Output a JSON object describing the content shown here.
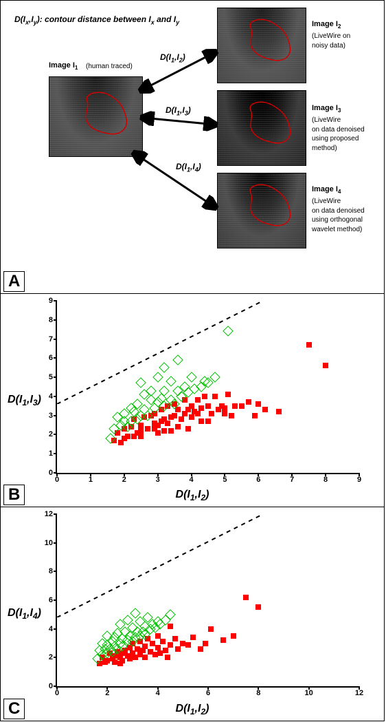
{
  "panelA": {
    "letter": "A",
    "definition_html": "D(I<sub>x</sub>,I<sub>y</sub>): contour distance between I<sub>x</sub> and I<sub>y</sub>",
    "left_image": {
      "label_html": "Image I<sub>1</sub>",
      "caption": "(human traced)",
      "contour_color": "#d00000"
    },
    "right_images": [
      {
        "label_html": "Image I<sub>2</sub>",
        "caption": "(LiveWire on\nnoisy data)"
      },
      {
        "label_html": "Image I<sub>3</sub>",
        "caption": "(LiveWire\non data denoised\nusing proposed\nmethod)"
      },
      {
        "label_html": "Image I<sub>4</sub>",
        "caption": "(LiveWire\non data denoised\nusing orthogonal\nwavelet method)"
      }
    ],
    "edges": [
      {
        "label_html": "D(I<sub>1</sub>,I<sub>2</sub>)"
      },
      {
        "label_html": "D(I<sub>1</sub>,I<sub>3</sub>)"
      },
      {
        "label_html": "D(I<sub>1</sub>,I<sub>4</sub>)"
      }
    ]
  },
  "chartB": {
    "letter": "B",
    "type": "scatter",
    "x_label_html": "D(I<sub>1</sub>,I<sub>2</sub>)",
    "y_label_html": "D(I<sub>1</sub>,I<sub>3</sub>)",
    "xlim": [
      0,
      9
    ],
    "ylim": [
      0,
      9
    ],
    "xtick_step": 1,
    "ytick_step": 1,
    "axis_color": "#000000",
    "diag_dash": "6 6",
    "background_color": "#ffffff",
    "label_fontsize": 16,
    "tick_fontsize": 11,
    "series": [
      {
        "name": "red_squares",
        "marker": "square",
        "fill_color": "#ff0000",
        "stroke_color": "#ff0000",
        "size": 8,
        "points": [
          [
            1.7,
            1.7
          ],
          [
            1.8,
            2.1
          ],
          [
            1.9,
            1.6
          ],
          [
            2.0,
            2.3
          ],
          [
            2.0,
            1.8
          ],
          [
            2.1,
            1.9
          ],
          [
            2.2,
            2.4
          ],
          [
            2.3,
            1.9
          ],
          [
            2.3,
            2.8
          ],
          [
            2.4,
            2.1
          ],
          [
            2.5,
            2.2
          ],
          [
            2.5,
            1.9
          ],
          [
            2.5,
            2.5
          ],
          [
            2.6,
            2.9
          ],
          [
            2.7,
            2.3
          ],
          [
            2.8,
            3.0
          ],
          [
            2.9,
            2.3
          ],
          [
            2.9,
            2.6
          ],
          [
            2.9,
            3.1
          ],
          [
            3.0,
            2.1
          ],
          [
            3.0,
            2.5
          ],
          [
            3.1,
            3.3
          ],
          [
            3.1,
            2.7
          ],
          [
            3.2,
            2.2
          ],
          [
            3.2,
            2.8
          ],
          [
            3.3,
            3.5
          ],
          [
            3.3,
            2.6
          ],
          [
            3.4,
            2.9
          ],
          [
            3.4,
            2.2
          ],
          [
            3.5,
            3.0
          ],
          [
            3.5,
            3.6
          ],
          [
            3.6,
            2.4
          ],
          [
            3.6,
            3.3
          ],
          [
            3.7,
            2.8
          ],
          [
            3.8,
            3.1
          ],
          [
            3.8,
            3.8
          ],
          [
            3.9,
            2.3
          ],
          [
            3.9,
            3.3
          ],
          [
            4.0,
            3.5
          ],
          [
            4.0,
            2.9
          ],
          [
            4.1,
            3.2
          ],
          [
            4.2,
            3.8
          ],
          [
            4.2,
            3.1
          ],
          [
            4.3,
            2.7
          ],
          [
            4.3,
            3.4
          ],
          [
            4.4,
            4.0
          ],
          [
            4.5,
            3.5
          ],
          [
            4.5,
            2.7
          ],
          [
            4.6,
            3.1
          ],
          [
            4.7,
            4.0
          ],
          [
            4.8,
            3.3
          ],
          [
            4.9,
            3.5
          ],
          [
            5.0,
            3.1
          ],
          [
            5.0,
            3.4
          ],
          [
            5.1,
            4.1
          ],
          [
            5.2,
            3.0
          ],
          [
            5.3,
            3.5
          ],
          [
            5.5,
            3.5
          ],
          [
            5.7,
            3.7
          ],
          [
            5.9,
            3.0
          ],
          [
            6.0,
            3.6
          ],
          [
            6.2,
            3.3
          ],
          [
            6.6,
            3.2
          ],
          [
            7.5,
            6.7
          ],
          [
            8.0,
            5.6
          ]
        ]
      },
      {
        "name": "green_diamonds",
        "marker": "diamond",
        "fill_color": "transparent",
        "stroke_color": "#00c000",
        "size": 9,
        "points": [
          [
            1.6,
            1.8
          ],
          [
            1.7,
            2.3
          ],
          [
            1.8,
            2.9
          ],
          [
            1.9,
            2.5
          ],
          [
            2.0,
            2.7
          ],
          [
            2.0,
            3.1
          ],
          [
            2.1,
            2.4
          ],
          [
            2.2,
            3.4
          ],
          [
            2.2,
            2.7
          ],
          [
            2.3,
            3.2
          ],
          [
            2.4,
            2.8
          ],
          [
            2.4,
            3.6
          ],
          [
            2.5,
            3.0
          ],
          [
            2.5,
            4.7
          ],
          [
            2.6,
            3.3
          ],
          [
            2.6,
            4.1
          ],
          [
            2.7,
            3.0
          ],
          [
            2.8,
            3.8
          ],
          [
            2.8,
            4.3
          ],
          [
            2.9,
            3.4
          ],
          [
            3.0,
            3.7
          ],
          [
            3.0,
            5.0
          ],
          [
            3.1,
            3.9
          ],
          [
            3.2,
            3.5
          ],
          [
            3.2,
            4.3
          ],
          [
            3.2,
            5.5
          ],
          [
            3.4,
            3.8
          ],
          [
            3.4,
            4.8
          ],
          [
            3.5,
            3.6
          ],
          [
            3.6,
            4.3
          ],
          [
            3.6,
            5.9
          ],
          [
            3.7,
            4.0
          ],
          [
            3.8,
            4.5
          ],
          [
            3.9,
            4.2
          ],
          [
            4.0,
            5.0
          ],
          [
            4.1,
            4.4
          ],
          [
            4.3,
            4.5
          ],
          [
            4.4,
            4.8
          ],
          [
            4.5,
            4.7
          ],
          [
            4.7,
            5.0
          ],
          [
            5.1,
            7.4
          ]
        ]
      }
    ]
  },
  "chartC": {
    "letter": "C",
    "type": "scatter",
    "x_label_html": "D(I<sub>1</sub>,I<sub>2</sub>)",
    "y_label_html": "D(I<sub>1</sub>,I<sub>4</sub>)",
    "xlim": [
      0,
      12
    ],
    "ylim": [
      0,
      12
    ],
    "xtick_step": 2,
    "ytick_step": 2,
    "axis_color": "#000000",
    "diag_dash": "6 6",
    "background_color": "#ffffff",
    "label_fontsize": 16,
    "tick_fontsize": 11,
    "series": [
      {
        "name": "red_squares",
        "marker": "square",
        "fill_color": "#ff0000",
        "stroke_color": "#ff0000",
        "size": 8,
        "points": [
          [
            1.7,
            1.6
          ],
          [
            1.8,
            2.0
          ],
          [
            1.9,
            1.7
          ],
          [
            2.0,
            1.8
          ],
          [
            2.1,
            2.3
          ],
          [
            2.2,
            1.9
          ],
          [
            2.3,
            2.1
          ],
          [
            2.3,
            1.7
          ],
          [
            2.4,
            2.4
          ],
          [
            2.5,
            2.0
          ],
          [
            2.5,
            1.6
          ],
          [
            2.6,
            2.3
          ],
          [
            2.6,
            1.8
          ],
          [
            2.7,
            2.5
          ],
          [
            2.8,
            2.1
          ],
          [
            2.9,
            2.7
          ],
          [
            2.9,
            1.9
          ],
          [
            3.0,
            2.3
          ],
          [
            3.0,
            3.0
          ],
          [
            3.1,
            2.0
          ],
          [
            3.2,
            2.6
          ],
          [
            3.3,
            2.2
          ],
          [
            3.3,
            3.1
          ],
          [
            3.4,
            2.5
          ],
          [
            3.5,
            2.0
          ],
          [
            3.5,
            2.8
          ],
          [
            3.6,
            3.3
          ],
          [
            3.7,
            2.4
          ],
          [
            3.8,
            3.0
          ],
          [
            3.9,
            2.2
          ],
          [
            4.0,
            2.7
          ],
          [
            4.0,
            3.5
          ],
          [
            4.1,
            2.3
          ],
          [
            4.2,
            3.1
          ],
          [
            4.3,
            2.5
          ],
          [
            4.4,
            2.0
          ],
          [
            4.5,
            2.9
          ],
          [
            4.5,
            4.2
          ],
          [
            4.7,
            3.3
          ],
          [
            4.8,
            2.6
          ],
          [
            5.0,
            3.0
          ],
          [
            5.2,
            2.9
          ],
          [
            5.4,
            3.4
          ],
          [
            5.7,
            2.6
          ],
          [
            5.9,
            3.0
          ],
          [
            6.1,
            4.0
          ],
          [
            6.6,
            3.2
          ],
          [
            7.0,
            3.5
          ],
          [
            7.5,
            6.2
          ],
          [
            8.0,
            5.5
          ]
        ]
      },
      {
        "name": "green_diamonds",
        "marker": "diamond",
        "fill_color": "transparent",
        "stroke_color": "#00c000",
        "size": 9,
        "points": [
          [
            1.6,
            1.9
          ],
          [
            1.7,
            2.5
          ],
          [
            1.8,
            2.2
          ],
          [
            1.8,
            3.0
          ],
          [
            1.9,
            2.6
          ],
          [
            2.0,
            2.3
          ],
          [
            2.0,
            2.9
          ],
          [
            2.0,
            3.5
          ],
          [
            2.1,
            2.6
          ],
          [
            2.2,
            3.1
          ],
          [
            2.2,
            2.4
          ],
          [
            2.3,
            3.4
          ],
          [
            2.3,
            2.8
          ],
          [
            2.4,
            2.6
          ],
          [
            2.4,
            3.7
          ],
          [
            2.5,
            3.0
          ],
          [
            2.5,
            4.3
          ],
          [
            2.6,
            3.3
          ],
          [
            2.6,
            2.8
          ],
          [
            2.7,
            3.8
          ],
          [
            2.8,
            3.2
          ],
          [
            2.8,
            4.6
          ],
          [
            2.9,
            3.5
          ],
          [
            3.0,
            3.1
          ],
          [
            3.0,
            4.1
          ],
          [
            3.1,
            3.4
          ],
          [
            3.1,
            5.1
          ],
          [
            3.2,
            3.8
          ],
          [
            3.3,
            3.5
          ],
          [
            3.3,
            4.5
          ],
          [
            3.4,
            3.8
          ],
          [
            3.5,
            4.2
          ],
          [
            3.5,
            3.6
          ],
          [
            3.6,
            4.8
          ],
          [
            3.7,
            4.0
          ],
          [
            3.8,
            4.3
          ],
          [
            3.9,
            4.1
          ],
          [
            4.0,
            4.5
          ],
          [
            4.1,
            4.3
          ],
          [
            4.3,
            4.6
          ],
          [
            4.5,
            5.0
          ]
        ]
      }
    ]
  }
}
